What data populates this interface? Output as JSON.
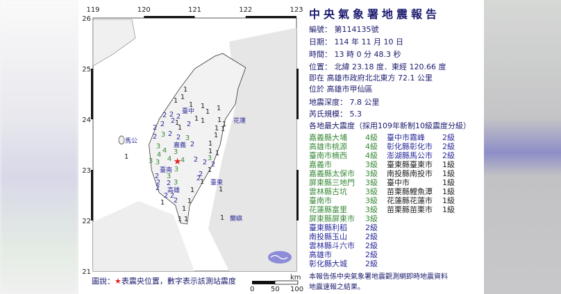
{
  "report": {
    "title": "中央氣象署地震報告",
    "number": "編號： 第114135號",
    "date": "日期： 114 年 11 月 10 日",
    "time": "時間： 13 時 0 分 48.3 秒",
    "location": "位置： 北緯 23.18 度．東經 120.66 度",
    "relative": "即在 高雄市政府北北東方 72.1 公里",
    "district": "位於 高雄市甲仙區",
    "depth": "地震深度： 7.8 公里",
    "magnitude": "芮氏規模： 5.3",
    "intensity_header": "各地最大震度（採用109年新制10級震度分級）",
    "intensities_left": [
      {
        "place": "嘉義縣大埔",
        "level": "4級"
      },
      {
        "place": "高雄市桃源",
        "level": "4級"
      },
      {
        "place": "臺南市楠西",
        "level": "4級"
      },
      {
        "place": "嘉義市",
        "level": "3級"
      },
      {
        "place": "嘉義縣太保市",
        "level": "3級"
      },
      {
        "place": "屏東縣三地門",
        "level": "3級"
      },
      {
        "place": "雲林縣古坑",
        "level": "3級"
      },
      {
        "place": "臺南市",
        "level": "3級"
      },
      {
        "place": "花蓮縣富里",
        "level": "3級"
      },
      {
        "place": "屏東縣屏東市",
        "level": "3級"
      },
      {
        "place": "臺東縣利稻",
        "level": "2級"
      },
      {
        "place": "南投縣玉山",
        "level": "2級"
      },
      {
        "place": "雲林縣斗六市",
        "level": "2級"
      },
      {
        "place": "高雄市",
        "level": "2級"
      },
      {
        "place": "彰化縣大城",
        "level": "2級"
      }
    ],
    "intensities_right": [
      {
        "place": "臺中市霧峰",
        "level": "2級"
      },
      {
        "place": "彰化縣彰化市",
        "level": "2級"
      },
      {
        "place": "澎湖縣馬公市",
        "level": "2級"
      },
      {
        "place": "臺東縣臺東市",
        "level": "1級"
      },
      {
        "place": "南投縣南投市",
        "level": "1級"
      },
      {
        "place": "臺中市",
        "level": "1級"
      },
      {
        "place": "苗栗縣鯉魚潭",
        "level": "1級"
      },
      {
        "place": "花蓮縣花蓮市",
        "level": "1級"
      },
      {
        "place": "苗栗縣苗栗市",
        "level": "1級"
      }
    ],
    "footer_line1": "本報告係中央氣象署地震觀測網即時地震資料",
    "footer_line2": "地震速報之結果。"
  },
  "colors": {
    "level4": "#3a8a3a",
    "level3": "#3a8a3a",
    "level2": "#2a2a9a",
    "level1": "#222222",
    "epicenter": "#e02020",
    "title": "#1a1a6e"
  },
  "map": {
    "lon_ticks": [
      "119",
      "120",
      "121",
      "122",
      "123"
    ],
    "lat_ticks": [
      "26",
      "25",
      "24",
      "23",
      "22",
      "21"
    ],
    "epicenter": {
      "lat": 23.18,
      "lon": 120.66
    },
    "city_labels": [
      "臺中",
      "花蓮",
      "馬公",
      "嘉義",
      "臺南",
      "高雄",
      "臺東",
      "蘭嶼"
    ],
    "station_intensities": [
      "1",
      "1",
      "1",
      "1",
      "1",
      "1",
      "1",
      "2",
      "2",
      "2",
      "1",
      "2",
      "1",
      "2",
      "1",
      "2",
      "1",
      "1",
      "1",
      "1",
      "1",
      "1",
      "2",
      "3",
      "2",
      "2",
      "2",
      "1",
      "2",
      "3",
      "3",
      "4",
      "1",
      "1",
      "4",
      "3",
      "3",
      "3",
      "4",
      "4",
      "3",
      "2",
      "2",
      "3",
      "2",
      "1",
      "2",
      "3",
      "2",
      "3",
      "2",
      "2",
      "1",
      "1",
      "2",
      "2",
      "2",
      "2",
      "2",
      "1",
      "1",
      "1",
      "1",
      "1",
      "1",
      "1",
      "1"
    ],
    "legend_prefix": "圖說：",
    "legend_star": "★",
    "legend_text": "表震央位置，數字表示該測站震度",
    "scale_unit": "km",
    "scale_labels": [
      "0",
      "50",
      "100"
    ],
    "logo": "CWA"
  }
}
